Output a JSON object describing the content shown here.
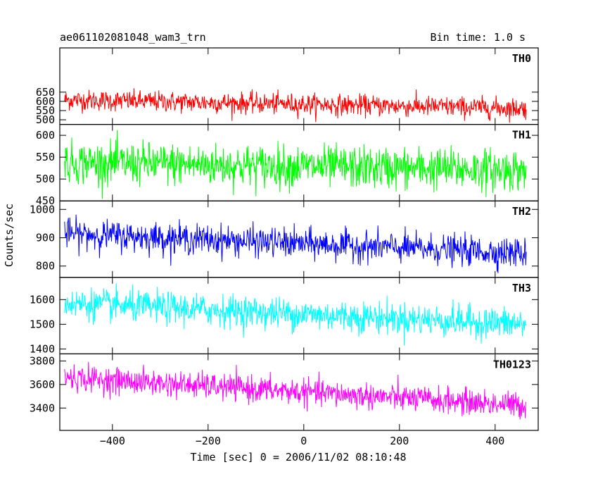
{
  "header": {
    "title": "ae061102081048_wam3_trn",
    "bin_time": "Bin time: 1.0 s"
  },
  "chart_data": {
    "type": "line",
    "xlabel": "Time [sec] 0 = 2006/11/02 08:10:48",
    "ylabel": "Counts/sec",
    "xlim": [
      -510,
      490
    ],
    "x_ticks": [
      -400,
      -200,
      0,
      200,
      400
    ],
    "x_range_data": [
      -500,
      465
    ],
    "grid": false,
    "panels": [
      {
        "name": "TH0",
        "color": "#ff0000",
        "ylim": [
          475,
          890
        ],
        "y_ticks": [
          500,
          550,
          600,
          650
        ],
        "trend": {
          "start": 608,
          "end": 562
        },
        "noise": 28,
        "y_clip": [
          470,
          700
        ]
      },
      {
        "name": "TH1",
        "color": "#00ff00",
        "ylim": [
          450,
          625
        ],
        "y_ticks": [
          450,
          500,
          550,
          600
        ],
        "trend": {
          "start": 538,
          "end": 520
        },
        "noise": 24,
        "y_clip": [
          455,
          625
        ]
      },
      {
        "name": "TH2",
        "color": "#0000ff",
        "ylim": [
          760,
          1030
        ],
        "y_ticks": [
          800,
          900,
          1000
        ],
        "trend": {
          "start": 915,
          "end": 845
        },
        "noise": 26,
        "y_clip": [
          775,
          1030
        ]
      },
      {
        "name": "TH3",
        "color": "#00ffff",
        "ylim": [
          1380,
          1690
        ],
        "y_ticks": [
          1400,
          1500,
          1600
        ],
        "trend": {
          "start": 1585,
          "end": 1500
        },
        "noise": 32,
        "y_clip": [
          1385,
          1690
        ]
      },
      {
        "name": "TH0123",
        "color": "#ff00ff",
        "ylim": [
          3210,
          3860
        ],
        "y_ticks": [
          3400,
          3600,
          3800
        ],
        "trend": {
          "start": 3660,
          "end": 3420
        },
        "noise": 55,
        "y_clip": [
          3260,
          3860
        ]
      }
    ]
  }
}
